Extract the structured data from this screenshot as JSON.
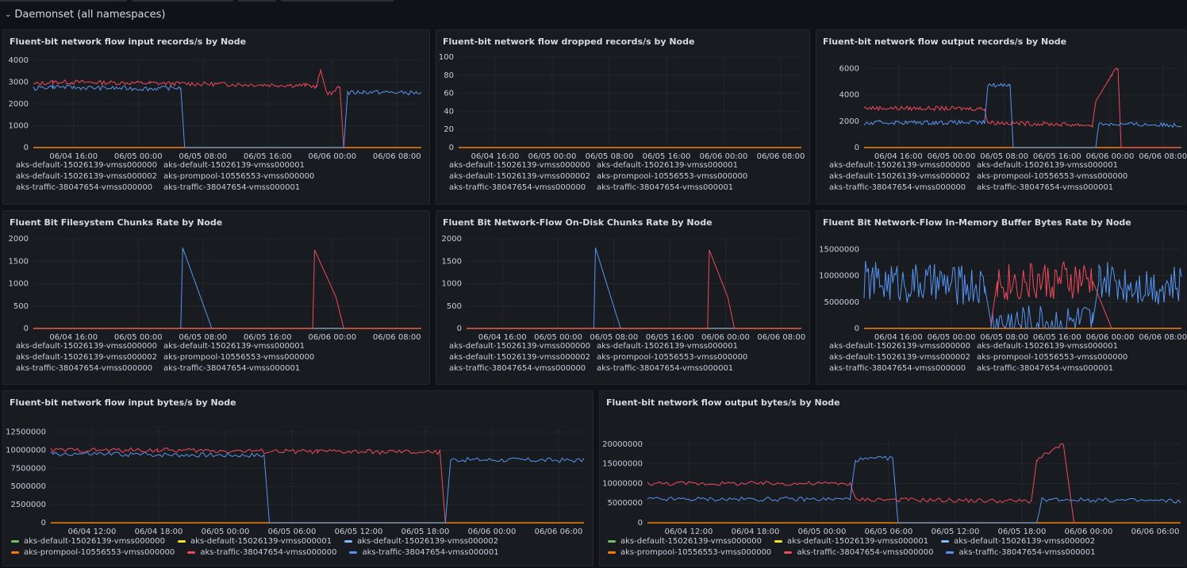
{
  "row": {
    "title": "Daemonset (all namespaces)"
  },
  "colors": {
    "green": "#73bf69",
    "yellow": "#fade2a",
    "lightblue": "#8ab8ff",
    "orange": "#ff780a",
    "red": "#f2495c",
    "blue": "#5794f2"
  },
  "nodes": [
    {
      "name": "aks-default-15026139-vmss000000",
      "color": "#73bf69"
    },
    {
      "name": "aks-default-15026139-vmss000001",
      "color": "#fade2a"
    },
    {
      "name": "aks-default-15026139-vmss000002",
      "color": "#8ab8ff"
    },
    {
      "name": "aks-prompool-10556553-vmss000000",
      "color": "#ff780a"
    },
    {
      "name": "aks-traffic-38047654-vmss000000",
      "color": "#f2495c"
    },
    {
      "name": "aks-traffic-38047654-vmss000001",
      "color": "#5794f2"
    }
  ],
  "panels": [
    {
      "title": "Fluent-bit network flow input records/s by Node"
    },
    {
      "title": "Fluent-bit network flow dropped records/s by Node"
    },
    {
      "title": "Fluent-bit network flow output records/s by Node"
    },
    {
      "title": "Fluent Bit Filesystem Chunks Rate by Node"
    },
    {
      "title": "Fluent Bit Network-Flow On-Disk Chunks Rate by Node"
    },
    {
      "title": "Fluent Bit Network-Flow In-Memory Buffer Bytes Rate by Node"
    },
    {
      "title": "Fluent-bit network flow input bytes/s by Node"
    },
    {
      "title": "Fluent-bit network flow output bytes/s by Node"
    }
  ],
  "chart_data": [
    {
      "type": "line",
      "title": "Fluent-bit network flow input records/s by Node",
      "ylim": [
        0,
        4000
      ],
      "yticks": [
        "0",
        "1000",
        "2000",
        "3000",
        "4000"
      ],
      "xticks": [
        "06/04 16:00",
        "06/05 00:00",
        "06/05 08:00",
        "06/05 16:00",
        "06/06 00:00",
        "06/06 08:00"
      ],
      "series": [
        {
          "name": "aks-traffic-38047654-vmss000000",
          "points": [
            [
              0,
              2900
            ],
            [
              0.05,
              3000
            ],
            [
              0.1,
              3000
            ],
            [
              0.3,
              2950
            ],
            [
              0.5,
              2900
            ],
            [
              0.7,
              2850
            ],
            [
              0.73,
              2800
            ],
            [
              0.74,
              3500
            ],
            [
              0.76,
              2400
            ],
            [
              0.79,
              2800
            ],
            [
              0.8,
              0
            ]
          ]
        },
        {
          "name": "aks-traffic-38047654-vmss000001",
          "points": [
            [
              0,
              2700
            ],
            [
              0.05,
              2800
            ],
            [
              0.1,
              2750
            ],
            [
              0.3,
              2700
            ],
            [
              0.38,
              2750
            ],
            [
              0.39,
              0
            ],
            [
              0.4,
              0
            ],
            [
              0.8,
              0
            ],
            [
              0.81,
              2500
            ],
            [
              0.85,
              2550
            ],
            [
              1,
              2500
            ]
          ]
        }
      ]
    },
    {
      "type": "line",
      "title": "Fluent-bit network flow dropped records/s by Node",
      "ylim": [
        0,
        100
      ],
      "yticks": [
        "0",
        "20",
        "40",
        "60",
        "80",
        "100"
      ],
      "xticks": [
        "06/04 16:00",
        "06/05 00:00",
        "06/05 08:00",
        "06/05 16:00",
        "06/06 00:00",
        "06/06 08:00"
      ],
      "series": []
    },
    {
      "type": "line",
      "title": "Fluent-bit network flow output records/s by Node",
      "ylim": [
        0,
        6500
      ],
      "yticks": [
        "0",
        "2000",
        "4000",
        "6000"
      ],
      "xticks": [
        "06/04 16:00",
        "06/05 00:00",
        "06/05 08:00",
        "06/05 16:00",
        "06/06 00:00",
        "06/06 08:00"
      ],
      "series": [
        {
          "name": "aks-traffic-38047654-vmss000000",
          "points": [
            [
              0,
              3000
            ],
            [
              0.38,
              2950
            ],
            [
              0.39,
              1900
            ],
            [
              0.72,
              1700
            ],
            [
              0.73,
              3500
            ],
            [
              0.78,
              5500
            ],
            [
              0.8,
              6000
            ],
            [
              0.81,
              0
            ],
            [
              1,
              0
            ]
          ]
        },
        {
          "name": "aks-traffic-38047654-vmss000001",
          "points": [
            [
              0,
              1800
            ],
            [
              0.05,
              1900
            ],
            [
              0.38,
              1900
            ],
            [
              0.39,
              4700
            ],
            [
              0.46,
              4800
            ],
            [
              0.47,
              0
            ],
            [
              0.73,
              0
            ],
            [
              0.74,
              1800
            ],
            [
              1,
              1700
            ]
          ]
        }
      ]
    },
    {
      "type": "line",
      "title": "Fluent Bit Filesystem Chunks Rate by Node",
      "ylim": [
        0,
        2000
      ],
      "yticks": [
        "0",
        "500",
        "1000",
        "1500",
        "2000"
      ],
      "xticks": [
        "06/04 16:00",
        "06/05 00:00",
        "06/05 08:00",
        "06/05 16:00",
        "06/06 00:00",
        "06/06 08:00"
      ],
      "series": [
        {
          "name": "aks-traffic-38047654-vmss000001",
          "points": [
            [
              0,
              0
            ],
            [
              0.38,
              0
            ],
            [
              0.385,
              1800
            ],
            [
              0.46,
              0
            ],
            [
              1,
              0
            ]
          ]
        },
        {
          "name": "aks-traffic-38047654-vmss000000",
          "points": [
            [
              0,
              0
            ],
            [
              0.72,
              0
            ],
            [
              0.725,
              1750
            ],
            [
              0.78,
              700
            ],
            [
              0.8,
              0
            ],
            [
              1,
              0
            ]
          ]
        }
      ]
    },
    {
      "type": "line",
      "title": "Fluent Bit Network-Flow On-Disk Chunks Rate by Node",
      "ylim": [
        0,
        2000
      ],
      "yticks": [
        "0",
        "500",
        "1000",
        "1500",
        "2000"
      ],
      "xticks": [
        "06/04 16:00",
        "06/05 00:00",
        "06/05 08:00",
        "06/05 16:00",
        "06/06 00:00",
        "06/06 08:00"
      ],
      "series": [
        {
          "name": "aks-traffic-38047654-vmss000001",
          "points": [
            [
              0,
              0
            ],
            [
              0.38,
              0
            ],
            [
              0.385,
              1800
            ],
            [
              0.46,
              0
            ],
            [
              1,
              0
            ]
          ]
        },
        {
          "name": "aks-traffic-38047654-vmss000000",
          "points": [
            [
              0,
              0
            ],
            [
              0.72,
              0
            ],
            [
              0.725,
              1750
            ],
            [
              0.78,
              700
            ],
            [
              0.8,
              0
            ],
            [
              1,
              0
            ]
          ]
        }
      ]
    },
    {
      "type": "line",
      "title": "Fluent Bit Network-Flow In-Memory Buffer Bytes Rate by Node",
      "ylim": [
        0,
        17000000
      ],
      "yticks": [
        "0",
        "5000000",
        "10000000",
        "15000000"
      ],
      "xticks": [
        "06/04 16:00",
        "06/05 00:00",
        "06/05 08:00",
        "06/05 16:00",
        "06/06 00:00",
        "06/06 08:00"
      ],
      "series": [
        {
          "name": "aks-traffic-38047654-vmss000001",
          "points": [
            [
              0,
              9000000
            ],
            [
              0.38,
              8000000
            ],
            [
              0.4,
              1000000
            ],
            [
              0.72,
              1000000
            ],
            [
              0.74,
              9000000
            ],
            [
              1,
              8000000
            ]
          ]
        },
        {
          "name": "aks-traffic-38047654-vmss000000",
          "points": [
            [
              0.4,
              1000000
            ],
            [
              0.42,
              9000000
            ],
            [
              0.72,
              9000000
            ],
            [
              0.78,
              0
            ]
          ]
        }
      ]
    },
    {
      "type": "line",
      "title": "Fluent-bit network flow input bytes/s by Node",
      "ylim": [
        0,
        13000000
      ],
      "yticks": [
        "0",
        "2500000",
        "5000000",
        "7500000",
        "10000000",
        "12500000"
      ],
      "xticks": [
        "06/04 12:00",
        "06/04 18:00",
        "06/05 00:00",
        "06/05 06:00",
        "06/05 12:00",
        "06/05 18:00",
        "06/06 00:00",
        "06/06 06:00"
      ],
      "series": [
        {
          "name": "aks-traffic-38047654-vmss000000",
          "points": [
            [
              0,
              10000000
            ],
            [
              0.2,
              10000000
            ],
            [
              0.5,
              9800000
            ],
            [
              0.73,
              9700000
            ],
            [
              0.74,
              0
            ]
          ]
        },
        {
          "name": "aks-traffic-38047654-vmss000001",
          "points": [
            [
              0,
              9500000
            ],
            [
              0.4,
              9300000
            ],
            [
              0.41,
              0
            ],
            [
              0.74,
              0
            ],
            [
              0.75,
              8700000
            ],
            [
              1,
              8600000
            ]
          ]
        }
      ]
    },
    {
      "type": "line",
      "title": "Fluent-bit network flow output bytes/s by Node",
      "ylim": [
        0,
        22000000
      ],
      "yticks": [
        "0",
        "5000000",
        "10000000",
        "15000000",
        "20000000"
      ],
      "xticks": [
        "06/04 12:00",
        "06/04 18:00",
        "06/05 00:00",
        "06/05 06:00",
        "06/05 12:00",
        "06/05 18:00",
        "06/06 00:00",
        "06/06 06:00"
      ],
      "series": [
        {
          "name": "aks-traffic-38047654-vmss000000",
          "points": [
            [
              0,
              10000000
            ],
            [
              0.38,
              10000000
            ],
            [
              0.39,
              6000000
            ],
            [
              0.72,
              5500000
            ],
            [
              0.73,
              16000000
            ],
            [
              0.78,
              20000000
            ],
            [
              0.8,
              0
            ]
          ]
        },
        {
          "name": "aks-traffic-38047654-vmss000001",
          "points": [
            [
              0,
              6000000
            ],
            [
              0.38,
              6000000
            ],
            [
              0.39,
              16000000
            ],
            [
              0.46,
              16500000
            ],
            [
              0.47,
              0
            ],
            [
              0.73,
              0
            ],
            [
              0.74,
              6000000
            ],
            [
              1,
              5500000
            ]
          ]
        }
      ]
    }
  ]
}
